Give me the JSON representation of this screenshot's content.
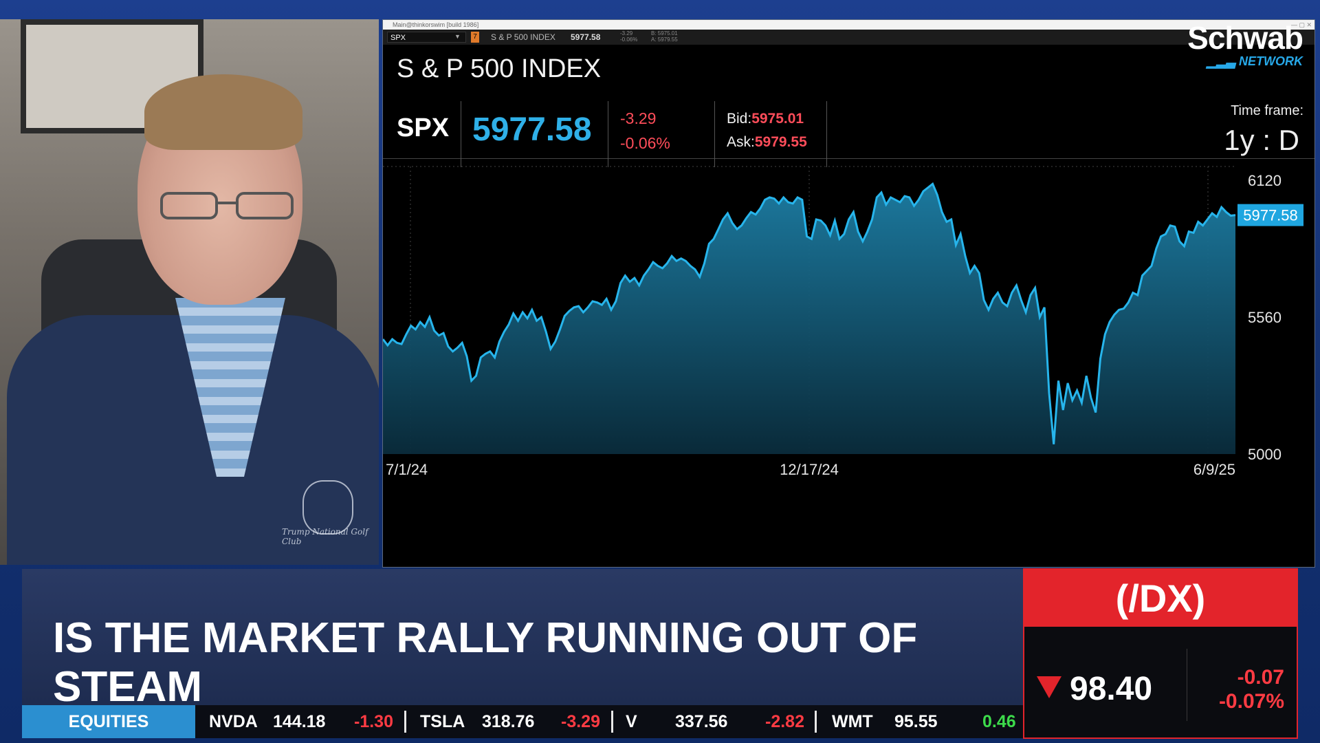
{
  "window": {
    "titlebar": "Main@thinkorswim [build 1986]",
    "toolbar_symbol": "SPX",
    "toolbar_badge": "7",
    "toolbar_name": "S & P 500 INDEX",
    "toolbar_price": "5977.58",
    "toolbar_chg": "-3.29",
    "toolbar_pct": "-0.06%",
    "toolbar_bid": "B: 5975.01",
    "toolbar_ask": "A: 5979.55"
  },
  "quote": {
    "index_name": "S & P 500 INDEX",
    "symbol": "SPX",
    "last": "5977.58",
    "change": "-3.29",
    "change_pct": "-0.06%",
    "bid_label": "Bid:",
    "bid": "5975.01",
    "ask_label": "Ask:",
    "ask": "5979.55",
    "timeframe_label": "Time frame:",
    "timeframe_value": "1y : D"
  },
  "chart_data": {
    "type": "area",
    "title": "",
    "x_ticks": [
      "7/1/24",
      "12/17/24",
      "6/9/25"
    ],
    "y_ticks": [
      6120,
      5560,
      5000
    ],
    "ylim": [
      5000,
      6120
    ],
    "last_value_label": "5977.58",
    "series": [
      {
        "values": [
          5470,
          5445,
          5470,
          5455,
          5450,
          5490,
          5525,
          5510,
          5540,
          5520,
          5560,
          5505,
          5485,
          5495,
          5440,
          5420,
          5435,
          5455,
          5400,
          5300,
          5320,
          5395,
          5410,
          5420,
          5395,
          5460,
          5500,
          5530,
          5575,
          5545,
          5580,
          5555,
          5590,
          5545,
          5560,
          5500,
          5430,
          5460,
          5510,
          5565,
          5585,
          5600,
          5605,
          5580,
          5600,
          5625,
          5620,
          5610,
          5635,
          5590,
          5625,
          5700,
          5730,
          5705,
          5720,
          5690,
          5730,
          5755,
          5785,
          5770,
          5760,
          5780,
          5810,
          5790,
          5800,
          5790,
          5770,
          5755,
          5725,
          5780,
          5860,
          5880,
          5920,
          5960,
          5985,
          5945,
          5920,
          5935,
          5965,
          5990,
          5980,
          6005,
          6040,
          6050,
          6045,
          6025,
          6050,
          6030,
          6025,
          6050,
          6040,
          5890,
          5880,
          5960,
          5955,
          5935,
          5895,
          5955,
          5880,
          5900,
          5960,
          5990,
          5910,
          5870,
          5910,
          5960,
          6050,
          6070,
          6020,
          6050,
          6040,
          6030,
          6055,
          6050,
          6015,
          6040,
          6075,
          6090,
          6105,
          6060,
          5990,
          5950,
          5960,
          5855,
          5900,
          5810,
          5740,
          5770,
          5740,
          5630,
          5590,
          5635,
          5660,
          5620,
          5605,
          5660,
          5690,
          5630,
          5580,
          5650,
          5680,
          5560,
          5600,
          5250,
          5040,
          5300,
          5180,
          5290,
          5220,
          5260,
          5210,
          5320,
          5230,
          5170,
          5390,
          5490,
          5540,
          5570,
          5590,
          5595,
          5620,
          5660,
          5650,
          5730,
          5750,
          5770,
          5840,
          5890,
          5900,
          5935,
          5930,
          5870,
          5850,
          5910,
          5905,
          5950,
          5935,
          5960,
          5985,
          5970,
          6010,
          5990,
          5975,
          5977.58
        ]
      }
    ]
  },
  "logo": {
    "name": "Schwab",
    "network": "NETWORK"
  },
  "lower_third": {
    "headline": "IS THE MARKET RALLY RUNNING OUT OF STEAM"
  },
  "dx_box": {
    "symbol": "(/DX)",
    "price": "98.40",
    "change": "-0.07",
    "change_pct": "-0.07%"
  },
  "ticker": {
    "category": "EQUITIES",
    "items": [
      {
        "symbol": "NVDA",
        "price": "144.18",
        "change": "-1.30",
        "dir": "neg"
      },
      {
        "symbol": "TSLA",
        "price": "318.76",
        "change": "-3.29",
        "dir": "neg"
      },
      {
        "symbol": "V",
        "price": "337.56",
        "change": "-2.82",
        "dir": "neg"
      },
      {
        "symbol": "WMT",
        "price": "95.55",
        "change": "0.46",
        "dir": "pos"
      }
    ]
  },
  "colors": {
    "accent_blue": "#2fb0e8",
    "down_red": "#ff3b43",
    "up_green": "#3ddb4b"
  },
  "camera": {
    "shirt_text": "Trump National Golf Club"
  }
}
